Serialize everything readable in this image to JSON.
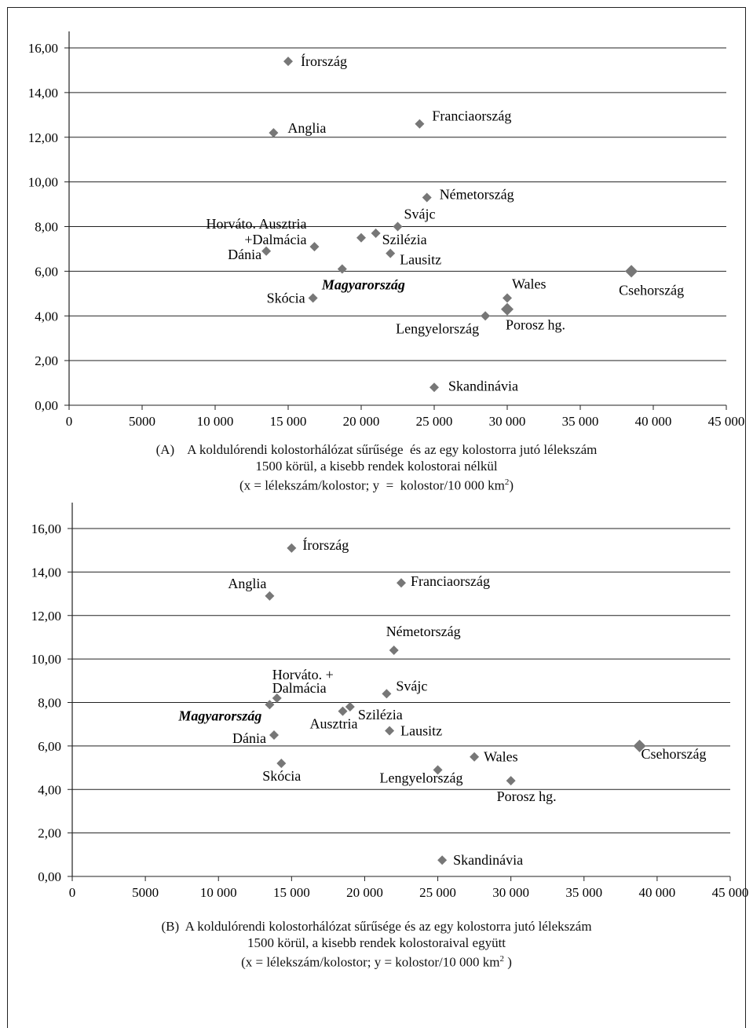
{
  "chart_data": [
    {
      "type": "scatter",
      "panel": "A",
      "caption": {
        "line1": "(A)    A koldulórendi kolostorhálózat sűrűsége  és az egy kolostorra jutó lélekszám",
        "line2": "1500 körül, a kisebb rendek kolostorai nélkül",
        "line3_pre": "(x = lélekszám/kolostor; y  =  kolostor/10 000 km",
        "line3_sup": "2",
        "line3_post": ")"
      },
      "xlim": [
        0,
        45000
      ],
      "ylim": [
        0,
        16
      ],
      "x_ticks": [
        "0",
        "5000",
        "10 000",
        "15 000",
        "20 000",
        "25 000",
        "30 000",
        "35 000",
        "40 000",
        "45 000"
      ],
      "y_ticks": [
        "0,00",
        "2,00",
        "4,00",
        "6,00",
        "8,00",
        "10,00",
        "12,00",
        "14,00",
        "16,00"
      ],
      "grid": "horizontal",
      "points": [
        {
          "x": 15000,
          "y": 15.4,
          "label": "Írország"
        },
        {
          "x": 14000,
          "y": 12.2,
          "label": "Anglia"
        },
        {
          "x": 24000,
          "y": 12.6,
          "label": "Franciaország"
        },
        {
          "x": 24500,
          "y": 9.3,
          "label": "Németország"
        },
        {
          "x": 22500,
          "y": 8.0,
          "label": "Svájc"
        },
        {
          "x": 21000,
          "y": 7.7,
          "label": "Szilézia"
        },
        {
          "x": 20000,
          "y": 7.5,
          "label": "Ausztria"
        },
        {
          "x": 16800,
          "y": 7.1,
          "label": "Horváto. +Dalmácia"
        },
        {
          "x": 13500,
          "y": 6.9,
          "label": "Dánia"
        },
        {
          "x": 22000,
          "y": 6.8,
          "label": "Lausitz"
        },
        {
          "x": 18700,
          "y": 6.1,
          "label": "Magyarország",
          "emph": true
        },
        {
          "x": 16700,
          "y": 4.8,
          "label": "Skócia"
        },
        {
          "x": 28500,
          "y": 4.0,
          "label": "Lengyelország"
        },
        {
          "x": 30000,
          "y": 4.8,
          "label": "Wales"
        },
        {
          "x": 30000,
          "y": 4.3,
          "label": "Porosz hg."
        },
        {
          "x": 38500,
          "y": 6.0,
          "label": "Csehország"
        },
        {
          "x": 25000,
          "y": 0.8,
          "label": "Skandinávia"
        }
      ]
    },
    {
      "type": "scatter",
      "panel": "B",
      "caption": {
        "line1": "(B)  A koldulórendi kolostorhálózat sűrűsége és az egy kolostorra jutó lélekszám",
        "line2": "1500 körül, a kisebb rendek kolostoraival együtt",
        "line3_pre": "(x = lélekszám/kolostor; y = kolostor/10 000 km",
        "line3_sup": "2",
        "line3_post": " )"
      },
      "xlim": [
        0,
        45000
      ],
      "ylim": [
        0,
        16
      ],
      "x_ticks": [
        "0",
        "5000",
        "10 000",
        "15 000",
        "20 000",
        "25 000",
        "30 000",
        "35 000",
        "40 000",
        "45 000"
      ],
      "y_ticks": [
        "0,00",
        "2,00",
        "4,00",
        "6,00",
        "8,00",
        "10,00",
        "12,00",
        "14,00",
        "16,00"
      ],
      "grid": "horizontal",
      "points": [
        {
          "x": 15000,
          "y": 15.1,
          "label": "Írország"
        },
        {
          "x": 13500,
          "y": 12.9,
          "label": "Anglia"
        },
        {
          "x": 22500,
          "y": 13.5,
          "label": "Franciaország"
        },
        {
          "x": 22000,
          "y": 10.4,
          "label": "Németország"
        },
        {
          "x": 21500,
          "y": 8.4,
          "label": "Svájc"
        },
        {
          "x": 14000,
          "y": 8.2,
          "label": "Horváto. + Dalmácia"
        },
        {
          "x": 13500,
          "y": 7.9,
          "label": "Magyarország",
          "emph": true
        },
        {
          "x": 19000,
          "y": 7.8,
          "label": "Szilézia"
        },
        {
          "x": 18500,
          "y": 7.6,
          "label": "Ausztria"
        },
        {
          "x": 21700,
          "y": 6.7,
          "label": "Lausitz"
        },
        {
          "x": 13800,
          "y": 6.5,
          "label": "Dánia"
        },
        {
          "x": 14300,
          "y": 5.2,
          "label": "Skócia"
        },
        {
          "x": 25000,
          "y": 4.9,
          "label": "Lengyelország"
        },
        {
          "x": 27500,
          "y": 5.5,
          "label": "Wales"
        },
        {
          "x": 30000,
          "y": 4.4,
          "label": "Porosz hg."
        },
        {
          "x": 38800,
          "y": 6.0,
          "label": "Csehország"
        },
        {
          "x": 25300,
          "y": 0.75,
          "label": "Skandinávia"
        }
      ]
    }
  ]
}
